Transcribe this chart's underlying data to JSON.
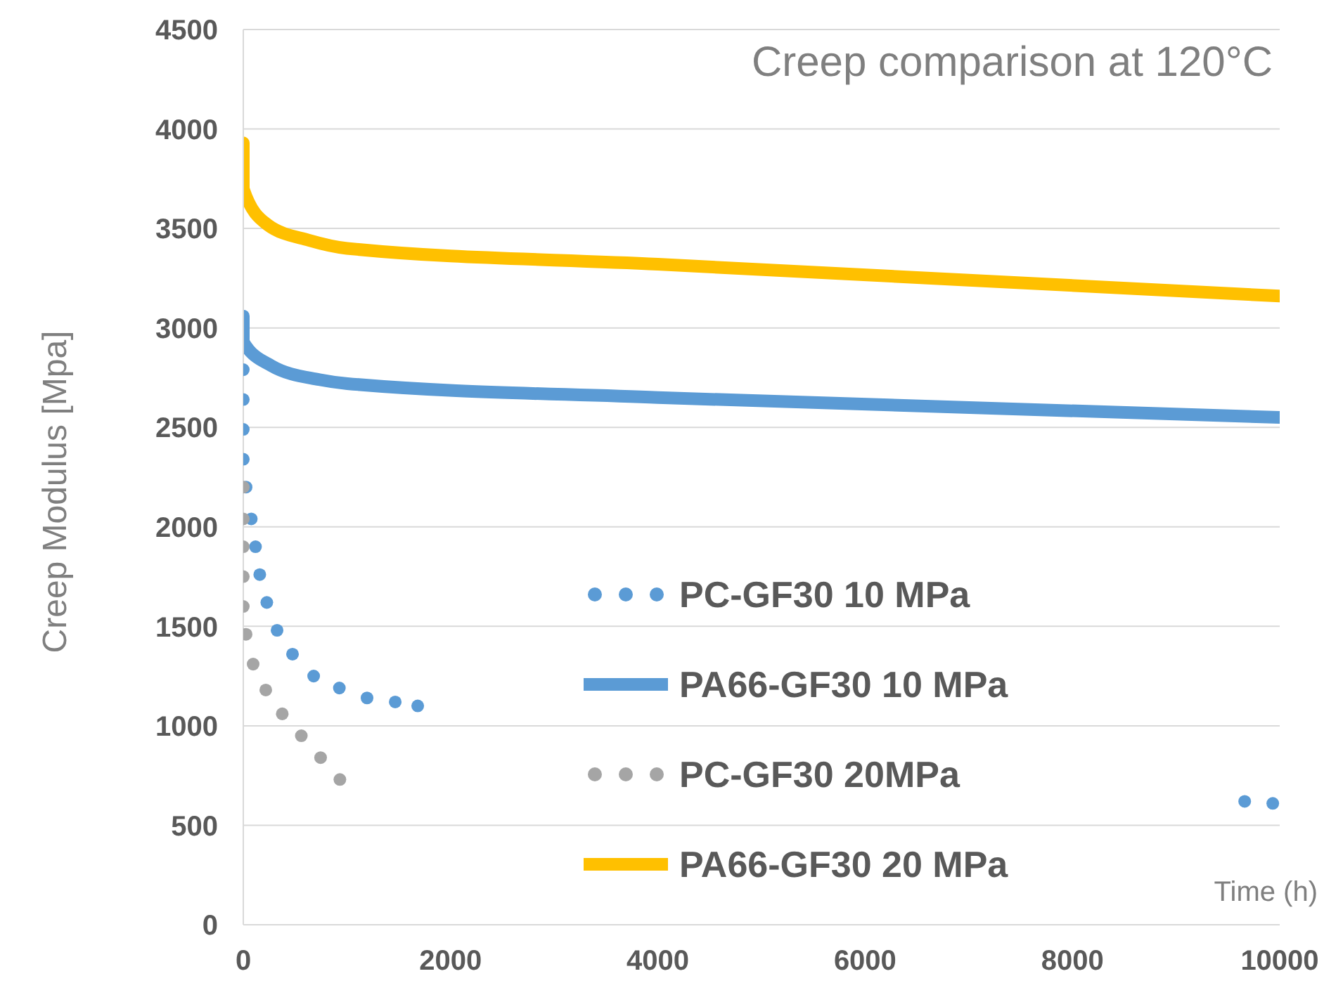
{
  "chart_data": {
    "type": "line",
    "title": "Creep comparison at 120°C",
    "xlabel": "Time (h)",
    "ylabel": "Creep Modulus [Mpa]",
    "xlim": [
      0,
      10000
    ],
    "xticks": [
      0,
      2000,
      4000,
      6000,
      8000,
      10000
    ],
    "ylim": [
      0,
      4500
    ],
    "yticks": [
      0,
      500,
      1000,
      1500,
      2000,
      2500,
      3000,
      3500,
      4000,
      4500
    ],
    "grid": "y",
    "legend": "right",
    "series": [
      {
        "name": "PC-GF30 10 MPa",
        "type": "scatter",
        "marker": "circle",
        "color": "#5b9bd5",
        "x": [
          0,
          0,
          0,
          0,
          27,
          77,
          118,
          159,
          227,
          326,
          475,
          679,
          927,
          1194,
          1466,
          1683,
          9662,
          9933
        ],
        "values": [
          2790,
          2640,
          2490,
          2340,
          2200,
          2040,
          1900,
          1760,
          1620,
          1480,
          1360,
          1250,
          1190,
          1140,
          1120,
          1100,
          620,
          610
        ]
      },
      {
        "name": "PA66-GF30 10 MPa",
        "type": "line",
        "marker": "none",
        "line_style": "solid",
        "color": "#5b9bd5",
        "x": [
          0,
          0,
          271,
          733,
          1004,
          4000,
          10000
        ],
        "values": [
          3060,
          2930,
          2810,
          2740,
          2720,
          2650,
          2550
        ]
      },
      {
        "name": "PC-GF30 20MPa",
        "type": "scatter",
        "marker": "circle",
        "color": "#a5a5a5",
        "x": [
          0,
          0,
          0,
          0,
          0,
          27,
          95,
          217,
          376,
          560,
          746,
          932
        ],
        "values": [
          2200,
          2040,
          1900,
          1750,
          1600,
          1460,
          1310,
          1180,
          1060,
          950,
          840,
          730
        ]
      },
      {
        "name": "PA66-GF30 20 MPa",
        "type": "line",
        "marker": "none",
        "line_style": "solid",
        "color": "#ffc000",
        "x": [
          0,
          0,
          231,
          638,
          1000,
          4000,
          10000
        ],
        "values": [
          3930,
          3700,
          3520,
          3440,
          3400,
          3320,
          3160
        ]
      }
    ]
  }
}
